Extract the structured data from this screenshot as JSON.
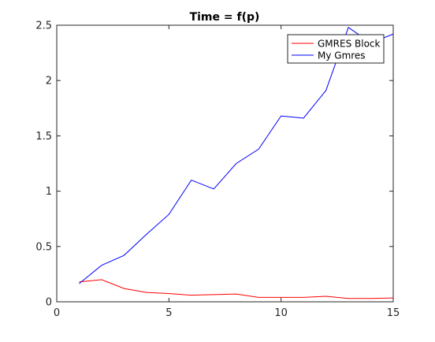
{
  "chart_data": {
    "type": "line",
    "title": "Time = f(p)",
    "xlabel": "",
    "ylabel": "",
    "xlim": [
      0,
      15
    ],
    "ylim": [
      0,
      2.5
    ],
    "xticks": [
      0,
      5,
      10,
      15
    ],
    "yticks": [
      0,
      0.5,
      1,
      1.5,
      2,
      2.5
    ],
    "xtick_labels": [
      "0",
      "5",
      "10",
      "15"
    ],
    "ytick_labels": [
      "0",
      "0.5",
      "1",
      "1.5",
      "2",
      "2.5"
    ],
    "grid": false,
    "legend_position": "top-right",
    "x": [
      1,
      2,
      3,
      4,
      5,
      6,
      7,
      8,
      9,
      10,
      11,
      12,
      13,
      14,
      15
    ],
    "series": [
      {
        "name": "GMRES Block",
        "color": "#ff0000",
        "values": [
          0.18,
          0.2,
          0.12,
          0.085,
          0.075,
          0.06,
          0.065,
          0.07,
          0.04,
          0.04,
          0.04,
          0.05,
          0.03,
          0.03,
          0.035
        ]
      },
      {
        "name": "My Gmres",
        "color": "#0000ff",
        "values": [
          0.165,
          0.33,
          0.42,
          0.61,
          0.79,
          1.1,
          1.02,
          1.25,
          1.38,
          1.68,
          1.66,
          1.91,
          2.48,
          2.34,
          2.42
        ]
      }
    ]
  }
}
